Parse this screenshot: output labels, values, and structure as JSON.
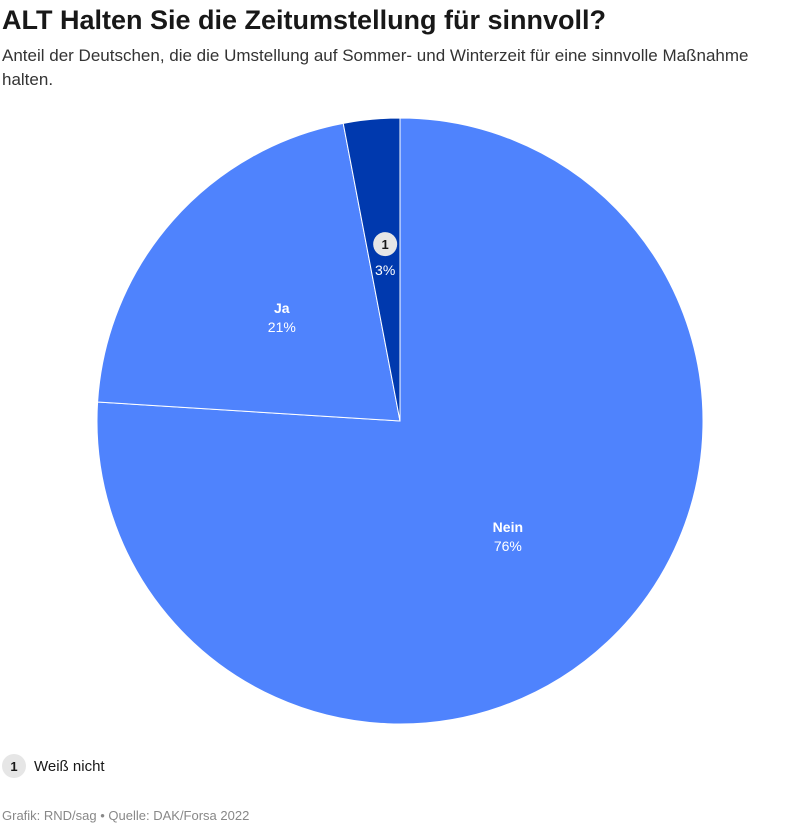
{
  "header": {
    "title": "ALT Halten Sie die Zeitumstellung für sinnvoll?",
    "subtitle": "Anteil der Deutschen, die die Umstellung auf Sommer- und Winterzeit für eine sinnvolle Maßnahme halten."
  },
  "chart_data": {
    "type": "pie",
    "unit": "%",
    "slices": [
      {
        "label": "Nein",
        "value": 76,
        "display": "76%",
        "color": "#4f83fd",
        "label_text": "Nein"
      },
      {
        "label": "Ja",
        "value": 21,
        "display": "21%",
        "color": "#4f83fd",
        "label_text": "Ja"
      },
      {
        "label": "Weiß nicht",
        "value": 3,
        "display": "3%",
        "color": "#0039ae",
        "label_text": "",
        "marker": "1"
      }
    ],
    "start": "12 o'clock",
    "direction": "clockwise"
  },
  "legend": {
    "marker": "1",
    "label": "Weiß nicht"
  },
  "footer": {
    "text": "Grafik: RND/sag • Quelle: DAK/Forsa 2022"
  }
}
